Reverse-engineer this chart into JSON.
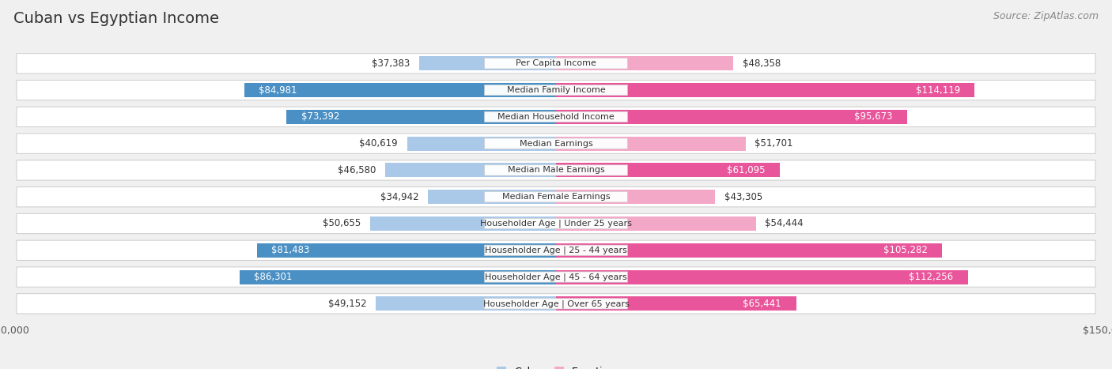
{
  "title": "Cuban vs Egyptian Income",
  "source": "Source: ZipAtlas.com",
  "categories": [
    "Per Capita Income",
    "Median Family Income",
    "Median Household Income",
    "Median Earnings",
    "Median Male Earnings",
    "Median Female Earnings",
    "Householder Age | Under 25 years",
    "Householder Age | 25 - 44 years",
    "Householder Age | 45 - 64 years",
    "Householder Age | Over 65 years"
  ],
  "cuban_values": [
    37383,
    84981,
    73392,
    40619,
    46580,
    34942,
    50655,
    81483,
    86301,
    49152
  ],
  "egyptian_values": [
    48358,
    114119,
    95673,
    51701,
    61095,
    43305,
    54444,
    105282,
    112256,
    65441
  ],
  "cuban_labels": [
    "$37,383",
    "$84,981",
    "$73,392",
    "$40,619",
    "$46,580",
    "$34,942",
    "$50,655",
    "$81,483",
    "$86,301",
    "$49,152"
  ],
  "egyptian_labels": [
    "$48,358",
    "$114,119",
    "$95,673",
    "$51,701",
    "$61,095",
    "$43,305",
    "$54,444",
    "$105,282",
    "$112,256",
    "$65,441"
  ],
  "cuban_color_dark": "#4a90c4",
  "cuban_color_light": "#aac8e8",
  "egyptian_color_dark": "#e8559a",
  "egyptian_color_light": "#f4a8c8",
  "cuban_dark_threshold": 60000,
  "egyptian_dark_threshold": 60000,
  "max_value": 150000,
  "background_color": "#f0f0f0",
  "row_bg": "#ffffff",
  "row_border": "#cccccc",
  "title_fontsize": 14,
  "source_fontsize": 9,
  "bar_label_fontsize": 8.5,
  "category_fontsize": 8,
  "axis_label_fontsize": 9,
  "legend_fontsize": 9
}
